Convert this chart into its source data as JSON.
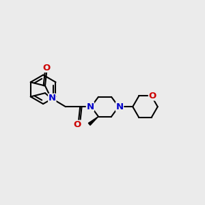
{
  "bg_color": "#ebebeb",
  "bond_color": "#000000",
  "n_color": "#0000cc",
  "o_color": "#cc0000",
  "bond_width": 1.5,
  "font_size": 9.5,
  "figw": 3.0,
  "figh": 3.0,
  "dpi": 100,
  "xlim": [
    0,
    10
  ],
  "ylim": [
    0,
    10
  ]
}
